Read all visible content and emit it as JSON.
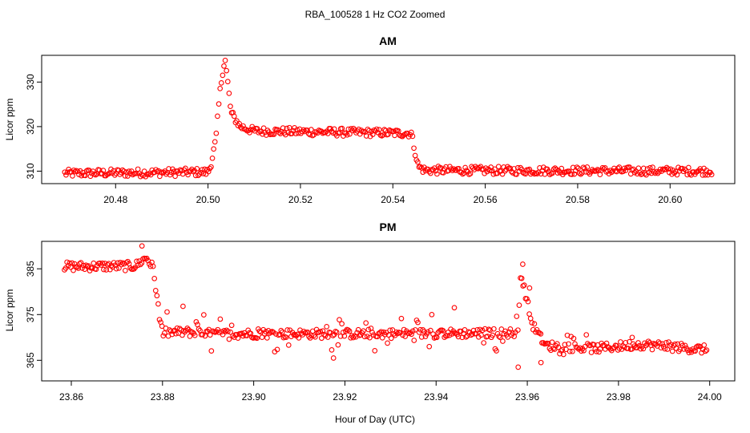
{
  "figure": {
    "title": "RBA_100528  1 Hz CO2 Zoomed",
    "xlabel": "Hour of Day (UTC)"
  },
  "colors": {
    "point": "#ff0000",
    "axis": "#000000",
    "background": "#ffffff"
  },
  "chart_data": [
    {
      "type": "scatter",
      "title": "AM",
      "ylabel": "Licor ppm",
      "xlim": [
        20.464,
        20.614
      ],
      "ylim": [
        307.2,
        336.0
      ],
      "xticks": [
        "20.48",
        "20.50",
        "20.52",
        "20.54",
        "20.56",
        "20.58",
        "20.60"
      ],
      "yticks": [
        "310",
        "320",
        "330"
      ],
      "grid": false,
      "marker": "open-circle",
      "series_profile": [
        {
          "x": 20.469,
          "y": 309.5
        },
        {
          "x": 20.5,
          "y": 309.8
        },
        {
          "x": 20.5005,
          "y": 311.0
        },
        {
          "x": 20.5017,
          "y": 317.0
        },
        {
          "x": 20.5025,
          "y": 327.0
        },
        {
          "x": 20.5033,
          "y": 333.5
        },
        {
          "x": 20.5037,
          "y": 335.0
        },
        {
          "x": 20.5042,
          "y": 330.5
        },
        {
          "x": 20.505,
          "y": 323.0
        },
        {
          "x": 20.507,
          "y": 320.0
        },
        {
          "x": 20.51,
          "y": 319.0
        },
        {
          "x": 20.525,
          "y": 318.8
        },
        {
          "x": 20.544,
          "y": 318.5
        },
        {
          "x": 20.5445,
          "y": 316.0
        },
        {
          "x": 20.5455,
          "y": 311.0
        },
        {
          "x": 20.547,
          "y": 310.2
        },
        {
          "x": 20.609,
          "y": 310.0
        }
      ]
    },
    {
      "type": "scatter",
      "title": "PM",
      "ylabel": "Licor ppm",
      "xlim": [
        23.8535,
        24.0055
      ],
      "ylim": [
        360.5,
        391.0
      ],
      "xticks": [
        "23.86",
        "23.88",
        "23.90",
        "23.92",
        "23.94",
        "23.96",
        "23.98",
        "24.00"
      ],
      "yticks": [
        "365",
        "375",
        "385"
      ],
      "grid": false,
      "marker": "open-circle",
      "series_profile": [
        {
          "x": 23.8585,
          "y": 385.5
        },
        {
          "x": 23.874,
          "y": 385.6
        },
        {
          "x": 23.8765,
          "y": 387.5
        },
        {
          "x": 23.878,
          "y": 385.0
        },
        {
          "x": 23.879,
          "y": 377.0
        },
        {
          "x": 23.88,
          "y": 371.0
        },
        {
          "x": 23.885,
          "y": 371.2
        },
        {
          "x": 23.89,
          "y": 370.8
        },
        {
          "x": 23.93,
          "y": 370.8
        },
        {
          "x": 23.958,
          "y": 371.0
        },
        {
          "x": 23.9585,
          "y": 384.0
        },
        {
          "x": 23.9595,
          "y": 380.0
        },
        {
          "x": 23.961,
          "y": 373.0
        },
        {
          "x": 23.964,
          "y": 368.2
        },
        {
          "x": 23.975,
          "y": 367.6
        },
        {
          "x": 23.985,
          "y": 368.5
        },
        {
          "x": 23.9995,
          "y": 367.3
        }
      ],
      "notable_points": [
        {
          "x": 23.8755,
          "y": 390.0
        },
        {
          "x": 23.8845,
          "y": 376.8
        },
        {
          "x": 23.9175,
          "y": 365.5
        },
        {
          "x": 23.944,
          "y": 376.5
        },
        {
          "x": 23.958,
          "y": 363.5
        },
        {
          "x": 23.959,
          "y": 386.0
        },
        {
          "x": 23.9605,
          "y": 380.8
        },
        {
          "x": 23.963,
          "y": 364.5
        },
        {
          "x": 23.983,
          "y": 370.0
        }
      ]
    }
  ]
}
